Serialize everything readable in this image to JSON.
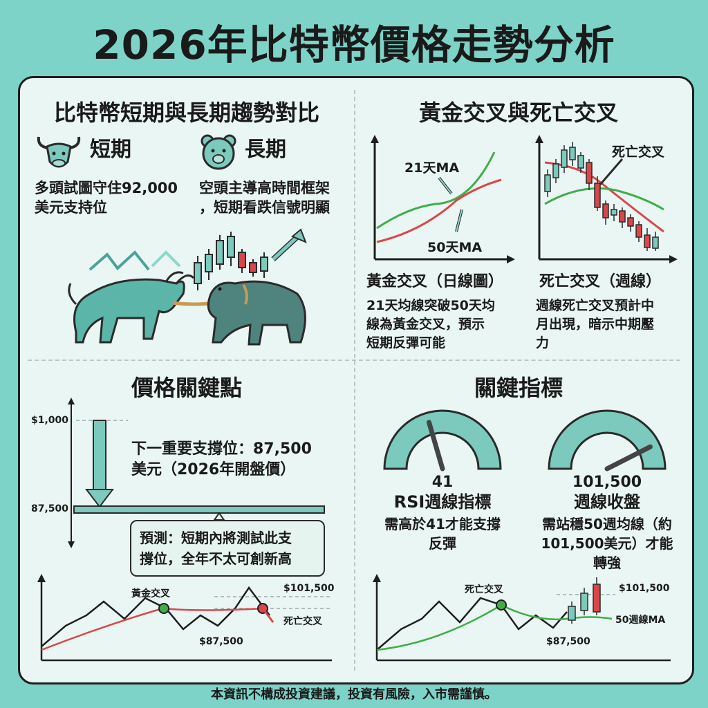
{
  "title": "2026年比特幣價格走勢分析",
  "footer": "本資訊不構成投資建議，投資有風險，入市需謹慎。",
  "colors": {
    "background": "#7dd3c8",
    "panel": "#eaf6f3",
    "green": "#3fae49",
    "red": "#d9474a",
    "teal": "#4aa39a"
  },
  "trend": {
    "heading": "比特幣短期與長期趨勢對比",
    "short": {
      "icon": "bull-icon",
      "label": "短期",
      "text": [
        "多頭試圖守住92,000",
        "美元支持位"
      ]
    },
    "long": {
      "icon": "bear-icon",
      "label": "長期",
      "text": [
        "空頭主導高時間框架",
        "，短期看跌信號明顯"
      ]
    }
  },
  "cross": {
    "heading": "黃金交叉與死亡交叉",
    "golden": {
      "ma_short": "21天MA",
      "ma_long": "50天MA",
      "caption": "黃金交叉（日線圖）",
      "desc": [
        "21天均線突破50天均",
        "線為黃金交叉，預示",
        "短期反彈可能"
      ]
    },
    "death": {
      "label": "死亡交叉",
      "caption": "死亡交叉（週線）",
      "desc": [
        "週線死亡交叉預計中",
        "月出現，暗示中期壓",
        "力"
      ]
    }
  },
  "price": {
    "heading": "價格關鍵點",
    "top_label": "$1,000",
    "support_label": "87,500",
    "support_text": [
      "下一重要支撐位：87,500",
      "美元（2026年開盤價）"
    ],
    "forecast": [
      "預測：短期內將測試此支",
      "撐位，全年不太可創新高"
    ],
    "mini": {
      "golden": "黃金交叉",
      "death": "死亡交叉",
      "high": "$101,500",
      "low": "$87,500"
    }
  },
  "indicators": {
    "heading": "關鍵指標",
    "rsi": {
      "value": "41",
      "name": "RSI週線指標",
      "desc": [
        "需高於41才能支撐",
        "反彈"
      ],
      "level": 0.41
    },
    "close": {
      "value": "101,500",
      "name": "週線收盤",
      "desc": [
        "需站穩50週均線（約",
        "101,500美元）才能",
        "轉強"
      ],
      "level": 0.85
    },
    "mini": {
      "death": "死亡交叉",
      "high": "$101,500",
      "ma": "50週線MA",
      "low": "$87,500"
    }
  }
}
